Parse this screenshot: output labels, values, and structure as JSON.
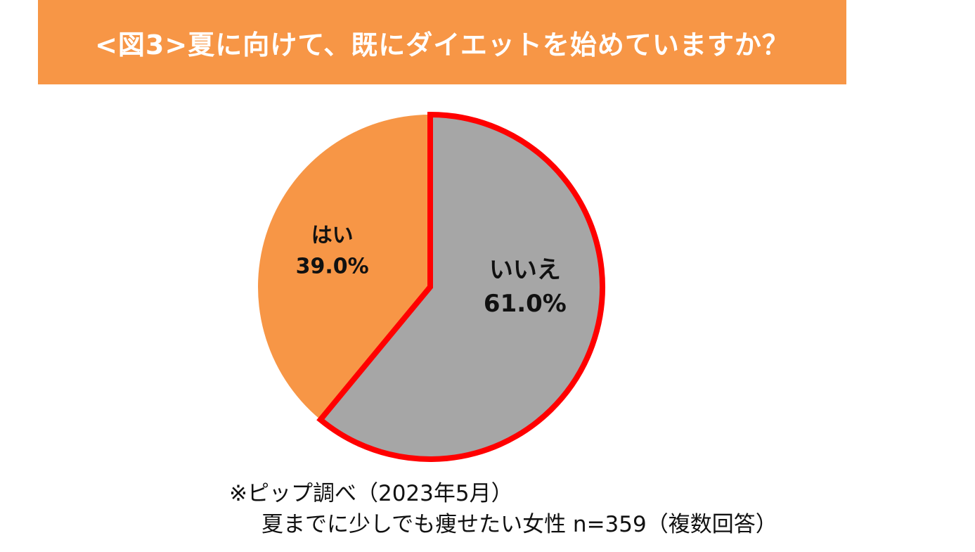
{
  "title": "<図3>夏に向けて、既にダイエットを始めていますか？",
  "colors": {
    "banner": "#f79646",
    "yes": "#f79646",
    "no": "#a6a6a6",
    "highlight_outline": "#ff0000"
  },
  "chart_data": {
    "type": "pie",
    "title": "<図3>夏に向けて、既にダイエットを始めていますか？",
    "slices": [
      {
        "label": "いいえ",
        "value": 61.0,
        "display": "61.0%",
        "highlighted": true
      },
      {
        "label": "はい",
        "value": 39.0,
        "display": "39.0%",
        "highlighted": false
      }
    ],
    "legend": "none"
  },
  "notes": {
    "line1": "※ピップ調べ（2023年5月）",
    "line2": "夏までに少しでも痩せたい女性 n=359（複数回答）"
  }
}
